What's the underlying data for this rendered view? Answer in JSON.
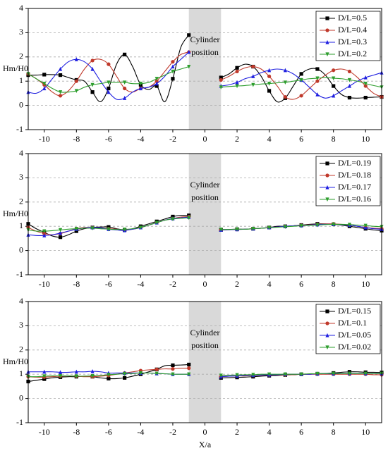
{
  "chart_data": [
    {
      "type": "line",
      "ylabel": "Hm/H0",
      "annotation": [
        "Cylinder",
        "position"
      ],
      "highlight_xrange": [
        -1,
        1
      ],
      "legend": "upper right",
      "grid": true,
      "xlim": [
        -11,
        11
      ],
      "ylim": [
        -1,
        4
      ],
      "xticks": [
        -10,
        -8,
        -6,
        -4,
        -2,
        0,
        2,
        4,
        6,
        8,
        10
      ],
      "yticks": [
        -1,
        0,
        1,
        2,
        3,
        4
      ],
      "x": [
        -11,
        -10.5,
        -10,
        -9.5,
        -9,
        -8.5,
        -8,
        -7.5,
        -7,
        -6.5,
        -6,
        -5.5,
        -5,
        -4.5,
        -4,
        -3.5,
        -3,
        -2.5,
        -2,
        -1.5,
        -1,
        0,
        1,
        1.5,
        2,
        2.5,
        3,
        3.5,
        4,
        4.5,
        5,
        5.5,
        6,
        6.5,
        7,
        7.5,
        8,
        8.5,
        9,
        9.5,
        10,
        10.5,
        11
      ],
      "series": [
        {
          "name": "D/L=0.5",
          "color": "#000000",
          "marker": "square",
          "values": [
            1.25,
            1.25,
            1.27,
            1.27,
            1.25,
            1.15,
            1.05,
            1.0,
            0.55,
            0.15,
            0.7,
            1.7,
            2.1,
            1.6,
            0.85,
            0.65,
            0.8,
            0.15,
            1.1,
            2.4,
            2.9,
            null,
            1.15,
            1.3,
            1.55,
            1.7,
            1.6,
            1.2,
            0.6,
            0.15,
            0.3,
            0.8,
            1.3,
            1.5,
            1.5,
            1.25,
            0.8,
            0.45,
            0.32,
            0.3,
            0.32,
            0.34,
            0.35
          ]
        },
        {
          "name": "D/L=0.4",
          "color": "#c0392b",
          "marker": "circle",
          "values": [
            1.3,
            1.1,
            0.85,
            0.55,
            0.4,
            0.6,
            1.0,
            1.5,
            1.85,
            1.9,
            1.7,
            1.2,
            0.7,
            0.55,
            0.7,
            0.75,
            1.0,
            1.4,
            1.8,
            2.1,
            2.2,
            null,
            1.05,
            1.2,
            1.4,
            1.55,
            1.6,
            1.5,
            1.2,
            0.8,
            0.35,
            0.25,
            0.4,
            0.7,
            1.0,
            1.25,
            1.45,
            1.5,
            1.4,
            1.15,
            0.8,
            0.5,
            0.35
          ]
        },
        {
          "name": "D/L=0.3",
          "color": "#1f1fe0",
          "marker": "triangle",
          "values": [
            0.55,
            0.5,
            0.7,
            1.1,
            1.5,
            1.8,
            1.9,
            1.8,
            1.5,
            1.0,
            0.55,
            0.25,
            0.3,
            0.55,
            0.7,
            0.75,
            0.9,
            1.2,
            1.6,
            1.9,
            2.2,
            null,
            0.8,
            0.85,
            0.95,
            1.1,
            1.2,
            1.35,
            1.45,
            1.5,
            1.45,
            1.3,
            1.05,
            0.75,
            0.45,
            0.3,
            0.4,
            0.6,
            0.8,
            1.0,
            1.15,
            1.25,
            1.35
          ]
        },
        {
          "name": "D/L=0.2",
          "color": "#2e9e2e",
          "marker": "triangle-down",
          "values": [
            1.3,
            1.1,
            0.9,
            0.7,
            0.55,
            0.55,
            0.6,
            0.75,
            0.85,
            0.9,
            0.95,
            0.95,
            0.95,
            0.9,
            0.9,
            0.95,
            1.1,
            1.25,
            1.4,
            1.5,
            1.6,
            null,
            0.75,
            0.78,
            0.8,
            0.82,
            0.85,
            0.88,
            0.9,
            0.93,
            0.95,
            1.0,
            1.05,
            1.1,
            1.12,
            1.15,
            1.12,
            1.1,
            1.05,
            1.0,
            0.9,
            0.82,
            0.75
          ]
        }
      ]
    },
    {
      "type": "line",
      "ylabel": "Hm/H0",
      "annotation": [
        "Cylinder",
        "position"
      ],
      "highlight_xrange": [
        -1,
        1
      ],
      "legend": "upper right",
      "grid": true,
      "xlim": [
        -11,
        11
      ],
      "ylim": [
        -1,
        4
      ],
      "xticks": [
        -10,
        -8,
        -6,
        -4,
        -2,
        0,
        2,
        4,
        6,
        8,
        10
      ],
      "yticks": [
        -1,
        0,
        1,
        2,
        3,
        4
      ],
      "x": [
        -11,
        -10.5,
        -10,
        -9.5,
        -9,
        -8.5,
        -8,
        -7.5,
        -7,
        -6.5,
        -6,
        -5.5,
        -5,
        -4.5,
        -4,
        -3.5,
        -3,
        -2.5,
        -2,
        -1.5,
        -1,
        0,
        1,
        1.5,
        2,
        2.5,
        3,
        3.5,
        4,
        4.5,
        5,
        5.5,
        6,
        6.5,
        7,
        7.5,
        8,
        8.5,
        9,
        9.5,
        10,
        10.5,
        11
      ],
      "series": [
        {
          "name": "D/L=0.19",
          "color": "#000000",
          "marker": "square",
          "values": [
            1.1,
            0.9,
            0.75,
            0.6,
            0.55,
            0.65,
            0.8,
            0.9,
            0.95,
            0.97,
            0.97,
            0.9,
            0.85,
            0.9,
            1.0,
            1.1,
            1.2,
            1.3,
            1.4,
            1.45,
            1.45,
            null,
            0.85,
            0.87,
            0.88,
            0.88,
            0.9,
            0.92,
            0.95,
            1.0,
            1.0,
            1.02,
            1.05,
            1.08,
            1.1,
            1.1,
            1.08,
            1.05,
            1.0,
            0.95,
            0.9,
            0.85,
            0.82
          ]
        },
        {
          "name": "D/L=0.18",
          "color": "#c0392b",
          "marker": "circle",
          "values": [
            0.95,
            0.8,
            0.7,
            0.65,
            0.7,
            0.8,
            0.9,
            0.95,
            0.95,
            0.93,
            0.9,
            0.88,
            0.85,
            0.88,
            0.95,
            1.05,
            1.15,
            1.25,
            1.32,
            1.38,
            1.4,
            null,
            0.85,
            0.86,
            0.87,
            0.88,
            0.9,
            0.92,
            0.95,
            0.97,
            1.0,
            1.02,
            1.04,
            1.06,
            1.08,
            1.1,
            1.1,
            1.08,
            1.05,
            1.0,
            0.95,
            0.92,
            0.9
          ]
        },
        {
          "name": "D/L=0.17",
          "color": "#1f1fe0",
          "marker": "triangle",
          "values": [
            0.65,
            0.62,
            0.62,
            0.65,
            0.72,
            0.8,
            0.88,
            0.93,
            0.95,
            0.93,
            0.88,
            0.85,
            0.83,
            0.88,
            0.95,
            1.05,
            1.15,
            1.25,
            1.32,
            1.35,
            1.38,
            null,
            0.85,
            0.86,
            0.87,
            0.88,
            0.9,
            0.92,
            0.95,
            0.97,
            1.0,
            1.02,
            1.03,
            1.05,
            1.07,
            1.08,
            1.08,
            1.07,
            1.05,
            1.0,
            0.95,
            0.9,
            0.88
          ]
        },
        {
          "name": "D/L=0.16",
          "color": "#2e9e2e",
          "marker": "triangle-down",
          "values": [
            0.85,
            0.8,
            0.8,
            0.82,
            0.85,
            0.88,
            0.9,
            0.92,
            0.92,
            0.9,
            0.88,
            0.87,
            0.87,
            0.9,
            0.95,
            1.05,
            1.15,
            1.25,
            1.3,
            1.33,
            1.35,
            null,
            0.87,
            0.87,
            0.88,
            0.88,
            0.9,
            0.92,
            0.94,
            0.96,
            0.98,
            1.0,
            1.02,
            1.04,
            1.05,
            1.07,
            1.08,
            1.08,
            1.07,
            1.05,
            1.03,
            1.0,
            0.98
          ]
        }
      ]
    },
    {
      "type": "line",
      "ylabel": "Hm/H0",
      "xlabel": "X/a",
      "annotation": [
        "Cylinder",
        "position"
      ],
      "highlight_xrange": [
        -1,
        1
      ],
      "legend": "upper right",
      "grid": true,
      "xlim": [
        -11,
        11
      ],
      "ylim": [
        -1,
        4
      ],
      "xticks": [
        -10,
        -8,
        -6,
        -4,
        -2,
        0,
        2,
        4,
        6,
        8,
        10
      ],
      "yticks": [
        -1,
        0,
        1,
        2,
        3,
        4
      ],
      "x": [
        -11,
        -10.5,
        -10,
        -9.5,
        -9,
        -8.5,
        -8,
        -7.5,
        -7,
        -6.5,
        -6,
        -5.5,
        -5,
        -4.5,
        -4,
        -3.5,
        -3,
        -2.5,
        -2,
        -1.5,
        -1,
        0,
        1,
        1.5,
        2,
        2.5,
        3,
        3.5,
        4,
        4.5,
        5,
        5.5,
        6,
        6.5,
        7,
        7.5,
        8,
        8.5,
        9,
        9.5,
        10,
        10.5,
        11
      ],
      "series": [
        {
          "name": "D/L=0.15",
          "color": "#000000",
          "marker": "square",
          "values": [
            0.7,
            0.75,
            0.8,
            0.85,
            0.88,
            0.9,
            0.9,
            0.92,
            0.9,
            0.85,
            0.82,
            0.82,
            0.85,
            0.92,
            1.0,
            1.1,
            1.2,
            1.35,
            1.37,
            1.38,
            1.4,
            null,
            0.85,
            0.86,
            0.87,
            0.88,
            0.9,
            0.92,
            0.94,
            0.95,
            0.97,
            0.98,
            1.0,
            1.0,
            1.02,
            1.03,
            1.05,
            1.08,
            1.1,
            1.1,
            1.08,
            1.08,
            1.07
          ]
        },
        {
          "name": "D/L=0.1",
          "color": "#c0392b",
          "marker": "circle",
          "values": [
            0.9,
            0.88,
            0.88,
            0.9,
            0.92,
            0.93,
            0.92,
            0.9,
            0.9,
            0.92,
            0.95,
            1.0,
            1.05,
            1.1,
            1.15,
            1.18,
            1.2,
            1.22,
            1.22,
            1.25,
            1.25,
            null,
            0.9,
            0.92,
            0.93,
            0.93,
            0.95,
            0.96,
            0.97,
            0.97,
            0.98,
            0.98,
            1.0,
            1.0,
            1.0,
            1.0,
            1.0,
            1.0,
            1.0,
            1.0,
            1.0,
            0.98,
            0.98
          ]
        },
        {
          "name": "D/L=0.05",
          "color": "#1f1fe0",
          "marker": "triangle",
          "values": [
            1.1,
            1.1,
            1.1,
            1.1,
            1.08,
            1.08,
            1.1,
            1.1,
            1.12,
            1.1,
            1.05,
            1.05,
            1.05,
            1.05,
            1.05,
            1.05,
            1.03,
            1.02,
            1.0,
            1.0,
            1.0,
            null,
            0.9,
            0.92,
            0.93,
            0.95,
            0.96,
            0.97,
            0.98,
            0.98,
            1.0,
            1.0,
            1.0,
            1.0,
            1.02,
            1.02,
            1.02,
            1.03,
            1.03,
            1.03,
            1.03,
            1.03,
            1.03
          ]
        },
        {
          "name": "D/L=0.02",
          "color": "#2e9e2e",
          "marker": "triangle-down",
          "values": [
            0.9,
            0.9,
            0.92,
            0.93,
            0.93,
            0.93,
            0.92,
            0.92,
            0.93,
            0.95,
            0.98,
            1.0,
            1.02,
            1.03,
            1.05,
            1.05,
            1.03,
            1.02,
            1.0,
            1.0,
            1.0,
            null,
            0.95,
            0.96,
            0.97,
            0.98,
            0.98,
            1.0,
            1.0,
            1.0,
            1.0,
            1.0,
            1.0,
            1.02,
            1.02,
            1.03,
            1.03,
            1.03,
            1.03,
            1.03,
            1.03,
            1.03,
            1.03
          ]
        }
      ]
    }
  ]
}
